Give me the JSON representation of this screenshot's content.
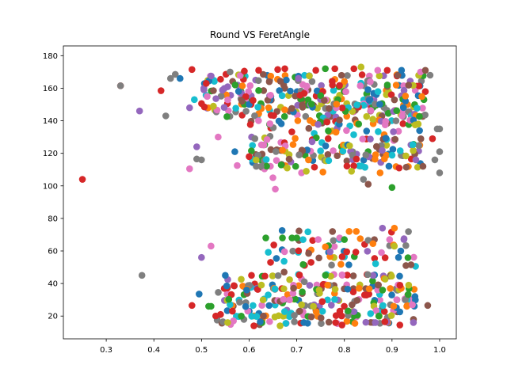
{
  "chart_data": {
    "type": "scatter",
    "title": "Round VS FeretAngle",
    "xlabel": "",
    "ylabel": "",
    "xlim": [
      0.21,
      1.035
    ],
    "ylim": [
      6,
      186
    ],
    "xticks": [
      0.3,
      0.4,
      0.5,
      0.6,
      0.7,
      0.8,
      0.9,
      1.0
    ],
    "xtick_labels": [
      "0.3",
      "0.4",
      "0.5",
      "0.6",
      "0.7",
      "0.8",
      "0.9",
      "1.0"
    ],
    "yticks": [
      20,
      40,
      60,
      80,
      100,
      120,
      140,
      160,
      180
    ],
    "ytick_labels": [
      "20",
      "40",
      "60",
      "80",
      "100",
      "120",
      "140",
      "160",
      "180"
    ],
    "grid": false,
    "palette": [
      "#1f77b4",
      "#ff7f0e",
      "#2ca02c",
      "#d62728",
      "#9467bd",
      "#8c564b",
      "#e377c2",
      "#7f7f7f",
      "#bcbd22",
      "#17becf"
    ],
    "points": [
      {
        "x": 0.25,
        "y": 104,
        "color": "#d62728"
      },
      {
        "x": 0.33,
        "y": 161.5,
        "color": "#d62728"
      },
      {
        "x": 0.33,
        "y": 161.5,
        "color": "#7f7f7f"
      },
      {
        "x": 0.37,
        "y": 146,
        "color": "#9467bd"
      },
      {
        "x": 0.375,
        "y": 45,
        "color": "#7f7f7f"
      },
      {
        "x": 0.415,
        "y": 158.5,
        "color": "#d62728"
      },
      {
        "x": 0.425,
        "y": 143,
        "color": "#7f7f7f"
      },
      {
        "x": 0.435,
        "y": 166,
        "color": "#7f7f7f"
      },
      {
        "x": 0.445,
        "y": 168.5,
        "color": "#7f7f7f"
      },
      {
        "x": 0.455,
        "y": 166,
        "color": "#1f77b4"
      },
      {
        "x": 0.475,
        "y": 110.5,
        "color": "#e377c2"
      },
      {
        "x": 0.48,
        "y": 171.5,
        "color": "#d62728"
      },
      {
        "x": 0.48,
        "y": 26.5,
        "color": "#d62728"
      },
      {
        "x": 0.475,
        "y": 148,
        "color": "#9467bd"
      },
      {
        "x": 0.485,
        "y": 153,
        "color": "#17becf"
      },
      {
        "x": 0.49,
        "y": 124,
        "color": "#9467bd"
      },
      {
        "x": 0.49,
        "y": 116.5,
        "color": "#7f7f7f"
      },
      {
        "x": 0.495,
        "y": 33.5,
        "color": "#1f77b4"
      },
      {
        "x": 0.5,
        "y": 56,
        "color": "#9467bd"
      },
      {
        "x": 0.5,
        "y": 116,
        "color": "#7f7f7f"
      },
      {
        "x": 0.505,
        "y": 160,
        "color": "#9467bd"
      },
      {
        "x": 0.51,
        "y": 163,
        "color": "#d62728"
      },
      {
        "x": 0.515,
        "y": 26,
        "color": "#2ca02c"
      },
      {
        "x": 0.52,
        "y": 63,
        "color": "#e377c2"
      },
      {
        "x": 0.52,
        "y": 26,
        "color": "#2ca02c"
      },
      {
        "x": 0.525,
        "y": 149,
        "color": "#bcbd22"
      },
      {
        "x": 0.53,
        "y": 20,
        "color": "#d62728"
      },
      {
        "x": 0.535,
        "y": 130,
        "color": "#e377c2"
      },
      {
        "x": 0.54,
        "y": 21,
        "color": "#d62728"
      },
      {
        "x": 0.54,
        "y": 165.5,
        "color": "#d62728"
      },
      {
        "x": 0.545,
        "y": 16.5,
        "color": "#7f7f7f"
      },
      {
        "x": 0.55,
        "y": 45,
        "color": "#1f77b4"
      },
      {
        "x": 0.555,
        "y": 16,
        "color": "#bcbd22"
      },
      {
        "x": 0.56,
        "y": 170,
        "color": "#7f7f7f"
      },
      {
        "x": 0.565,
        "y": 23,
        "color": "#d62728"
      },
      {
        "x": 0.57,
        "y": 121,
        "color": "#1f77b4"
      },
      {
        "x": 0.575,
        "y": 112.5,
        "color": "#e377c2"
      },
      {
        "x": 0.58,
        "y": 28.5,
        "color": "#7f7f7f"
      },
      {
        "x": 0.585,
        "y": 152,
        "color": "#8c564b"
      },
      {
        "x": 0.59,
        "y": 170.5,
        "color": "#d62728"
      },
      {
        "x": 0.595,
        "y": 36,
        "color": "#1f77b4"
      },
      {
        "x": 0.6,
        "y": 118,
        "color": "#d62728"
      },
      {
        "x": 0.605,
        "y": 45,
        "color": "#d62728"
      },
      {
        "x": 0.61,
        "y": 14,
        "color": "#d62728"
      },
      {
        "x": 0.615,
        "y": 112,
        "color": "#7f7f7f"
      },
      {
        "x": 0.62,
        "y": 171,
        "color": "#d62728"
      },
      {
        "x": 0.625,
        "y": 112,
        "color": "#7f7f7f"
      },
      {
        "x": 0.63,
        "y": 20,
        "color": "#8c564b"
      },
      {
        "x": 0.635,
        "y": 68,
        "color": "#2ca02c"
      },
      {
        "x": 0.64,
        "y": 33,
        "color": "#17becf"
      },
      {
        "x": 0.645,
        "y": 53,
        "color": "#d62728"
      },
      {
        "x": 0.65,
        "y": 105,
        "color": "#e377c2"
      },
      {
        "x": 0.655,
        "y": 98,
        "color": "#e377c2"
      },
      {
        "x": 0.66,
        "y": 171.5,
        "color": "#d62728"
      },
      {
        "x": 0.665,
        "y": 14,
        "color": "#bcbd22"
      },
      {
        "x": 0.67,
        "y": 68,
        "color": "#2ca02c"
      },
      {
        "x": 0.675,
        "y": 172,
        "color": "#d62728"
      },
      {
        "x": 0.68,
        "y": 111,
        "color": "#bcbd22"
      },
      {
        "x": 0.685,
        "y": 30,
        "color": "#e377c2"
      },
      {
        "x": 0.69,
        "y": 68,
        "color": "#2ca02c"
      },
      {
        "x": 0.695,
        "y": 16.5,
        "color": "#7f7f7f"
      },
      {
        "x": 0.7,
        "y": 68,
        "color": "#2ca02c"
      },
      {
        "x": 0.705,
        "y": 119,
        "color": "#7f7f7f"
      },
      {
        "x": 0.71,
        "y": 108,
        "color": "#e377c2"
      },
      {
        "x": 0.715,
        "y": 16,
        "color": "#1f77b4"
      },
      {
        "x": 0.72,
        "y": 109,
        "color": "#bcbd22"
      },
      {
        "x": 0.725,
        "y": 58.5,
        "color": "#8c564b"
      },
      {
        "x": 0.73,
        "y": 53,
        "color": "#d62728"
      },
      {
        "x": 0.735,
        "y": 26,
        "color": "#bcbd22"
      },
      {
        "x": 0.74,
        "y": 171,
        "color": "#d62728"
      },
      {
        "x": 0.745,
        "y": 67,
        "color": "#e377c2"
      },
      {
        "x": 0.75,
        "y": 121.5,
        "color": "#17becf"
      },
      {
        "x": 0.755,
        "y": 108.5,
        "color": "#ff7f0e"
      },
      {
        "x": 0.76,
        "y": 172,
        "color": "#2ca02c"
      },
      {
        "x": 0.765,
        "y": 39,
        "color": "#ff7f0e"
      },
      {
        "x": 0.77,
        "y": 59.5,
        "color": "#9467bd"
      },
      {
        "x": 0.775,
        "y": 162,
        "color": "#d62728"
      },
      {
        "x": 0.78,
        "y": 172,
        "color": "#d62728"
      },
      {
        "x": 0.785,
        "y": 118.5,
        "color": "#8c564b"
      },
      {
        "x": 0.79,
        "y": 68,
        "color": "#e377c2"
      },
      {
        "x": 0.795,
        "y": 14.5,
        "color": "#d62728"
      },
      {
        "x": 0.8,
        "y": 67,
        "color": "#2ca02c"
      },
      {
        "x": 0.805,
        "y": 59.5,
        "color": "#d62728"
      },
      {
        "x": 0.81,
        "y": 72,
        "color": "#ff7f0e"
      },
      {
        "x": 0.815,
        "y": 109,
        "color": "#bcbd22"
      },
      {
        "x": 0.82,
        "y": 172,
        "color": "#d62728"
      },
      {
        "x": 0.825,
        "y": 72,
        "color": "#ff7f0e"
      },
      {
        "x": 0.83,
        "y": 138,
        "color": "#2ca02c"
      },
      {
        "x": 0.835,
        "y": 173,
        "color": "#bcbd22"
      },
      {
        "x": 0.84,
        "y": 104,
        "color": "#7f7f7f"
      },
      {
        "x": 0.845,
        "y": 119,
        "color": "#7f7f7f"
      },
      {
        "x": 0.85,
        "y": 101,
        "color": "#8c564b"
      },
      {
        "x": 0.855,
        "y": 21.5,
        "color": "#17becf"
      },
      {
        "x": 0.86,
        "y": 64.5,
        "color": "#ff7f0e"
      },
      {
        "x": 0.865,
        "y": 16,
        "color": "#9467bd"
      },
      {
        "x": 0.87,
        "y": 171,
        "color": "#e377c2"
      },
      {
        "x": 0.875,
        "y": 108,
        "color": "#ff7f0e"
      },
      {
        "x": 0.88,
        "y": 74,
        "color": "#9467bd"
      },
      {
        "x": 0.885,
        "y": 16.5,
        "color": "#d62728"
      },
      {
        "x": 0.89,
        "y": 171,
        "color": "#d62728"
      },
      {
        "x": 0.895,
        "y": 67,
        "color": "#e377c2"
      },
      {
        "x": 0.9,
        "y": 99,
        "color": "#2ca02c"
      },
      {
        "x": 0.905,
        "y": 74,
        "color": "#ff7f0e"
      },
      {
        "x": 0.91,
        "y": 30,
        "color": "#e377c2"
      },
      {
        "x": 0.915,
        "y": 111,
        "color": "#d62728"
      },
      {
        "x": 0.92,
        "y": 171,
        "color": "#1f77b4"
      },
      {
        "x": 0.925,
        "y": 67,
        "color": "#9467bd"
      },
      {
        "x": 0.93,
        "y": 111.5,
        "color": "#8c564b"
      },
      {
        "x": 0.935,
        "y": 39,
        "color": "#bcbd22"
      },
      {
        "x": 0.94,
        "y": 51.5,
        "color": "#8c564b"
      },
      {
        "x": 0.945,
        "y": 16,
        "color": "#9467bd"
      },
      {
        "x": 0.95,
        "y": 116,
        "color": "#9467bd"
      },
      {
        "x": 0.955,
        "y": 138,
        "color": "#bcbd22"
      },
      {
        "x": 0.96,
        "y": 170,
        "color": "#e377c2"
      },
      {
        "x": 0.965,
        "y": 112,
        "color": "#8c564b"
      },
      {
        "x": 0.97,
        "y": 171,
        "color": "#8c564b"
      },
      {
        "x": 0.975,
        "y": 26.5,
        "color": "#8c564b"
      },
      {
        "x": 0.98,
        "y": 168,
        "color": "#7f7f7f"
      },
      {
        "x": 0.985,
        "y": 129,
        "color": "#d62728"
      },
      {
        "x": 0.99,
        "y": 116,
        "color": "#7f7f7f"
      },
      {
        "x": 0.995,
        "y": 135,
        "color": "#7f7f7f"
      },
      {
        "x": 1.0,
        "y": 108,
        "color": "#7f7f7f"
      },
      {
        "x": 1.0,
        "y": 121,
        "color": "#7f7f7f"
      },
      {
        "x": 1.0,
        "y": 135,
        "color": "#7f7f7f"
      }
    ],
    "clusters": [
      {
        "x_range": [
          0.5,
          0.97
        ],
        "y_range": [
          142,
          168
        ],
        "count": 300
      },
      {
        "x_range": [
          0.6,
          0.97
        ],
        "y_range": [
          110,
          142
        ],
        "count": 190
      },
      {
        "x_range": [
          0.63,
          0.95
        ],
        "y_range": [
          45,
          72
        ],
        "count": 70
      },
      {
        "x_range": [
          0.53,
          0.95
        ],
        "y_range": [
          14,
          45
        ],
        "count": 250
      }
    ]
  }
}
